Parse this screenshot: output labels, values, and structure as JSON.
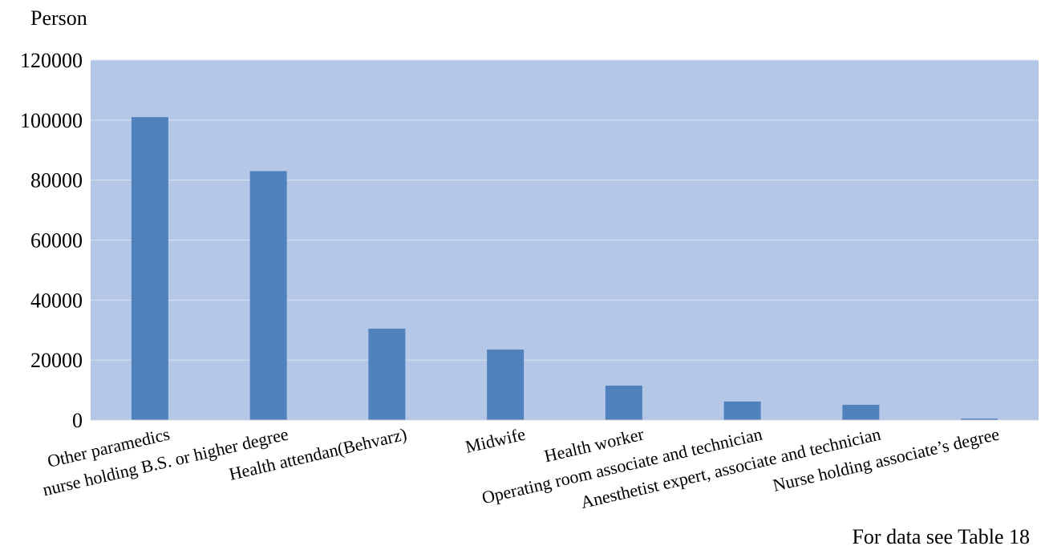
{
  "chart_data": {
    "type": "bar",
    "ylabel": "Person",
    "xlabel": "",
    "footnote": "For data see Table 18",
    "ylim": [
      0,
      120000
    ],
    "yticks": [
      0,
      20000,
      40000,
      60000,
      80000,
      100000,
      120000
    ],
    "grid": true,
    "categories": [
      "Other paramedics",
      "nurse holding B.S. or higher degree",
      "Health attendan(Behvarz)",
      "Midwife",
      "Health worker",
      "Operating room associate and technician",
      "Anesthetist expert, associate and technician",
      "Nurse holding  associate’s degree"
    ],
    "values": [
      101000,
      83000,
      30500,
      23500,
      11500,
      6200,
      5100,
      500
    ],
    "colors": {
      "plot_bg": "#b4c7e7",
      "bar": "#4f81bd",
      "grid": "#d9e2f1"
    }
  }
}
